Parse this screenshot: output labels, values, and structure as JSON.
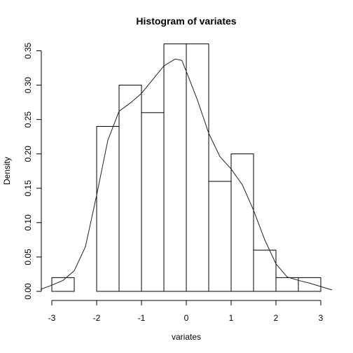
{
  "chart_data": {
    "type": "bar",
    "title": "Histogram of variates",
    "xlabel": "variates",
    "ylabel": "Density",
    "xlim": [
      -3,
      3
    ],
    "ylim": [
      0,
      0.36
    ],
    "grid": false,
    "bin_width": 0.5,
    "bins": [
      {
        "left": -3.0,
        "right": -2.5,
        "density": 0.02
      },
      {
        "left": -2.5,
        "right": -2.0,
        "density": 0.0
      },
      {
        "left": -2.0,
        "right": -1.5,
        "density": 0.24
      },
      {
        "left": -1.5,
        "right": -1.0,
        "density": 0.3
      },
      {
        "left": -1.0,
        "right": -0.5,
        "density": 0.26
      },
      {
        "left": -0.5,
        "right": 0.0,
        "density": 0.36
      },
      {
        "left": 0.0,
        "right": 0.5,
        "density": 0.36
      },
      {
        "left": 0.5,
        "right": 1.0,
        "density": 0.16
      },
      {
        "left": 1.0,
        "right": 1.5,
        "density": 0.2
      },
      {
        "left": 1.5,
        "right": 2.0,
        "density": 0.06
      },
      {
        "left": 2.0,
        "right": 2.5,
        "density": 0.02
      },
      {
        "left": 2.5,
        "right": 3.0,
        "density": 0.02
      }
    ],
    "x_ticks": [
      "-3",
      "-2",
      "-1",
      "0",
      "1",
      "2",
      "3"
    ],
    "y_ticks": [
      "0.00",
      "0.05",
      "0.10",
      "0.15",
      "0.20",
      "0.25",
      "0.30",
      "0.35"
    ],
    "density_curve": {
      "x": [
        -3.25,
        -3.0,
        -2.75,
        -2.5,
        -2.25,
        -2.0,
        -1.75,
        -1.5,
        -1.25,
        -1.0,
        -0.75,
        -0.5,
        -0.25,
        -0.1,
        0.0,
        0.25,
        0.5,
        0.75,
        1.0,
        1.25,
        1.5,
        1.75,
        2.0,
        2.25,
        2.5,
        2.75,
        3.0,
        3.25
      ],
      "y": [
        0.003,
        0.009,
        0.016,
        0.03,
        0.065,
        0.14,
        0.22,
        0.262,
        0.274,
        0.288,
        0.308,
        0.328,
        0.338,
        0.336,
        0.32,
        0.278,
        0.23,
        0.196,
        0.178,
        0.155,
        0.118,
        0.075,
        0.04,
        0.021,
        0.016,
        0.012,
        0.007,
        0.002
      ]
    }
  }
}
